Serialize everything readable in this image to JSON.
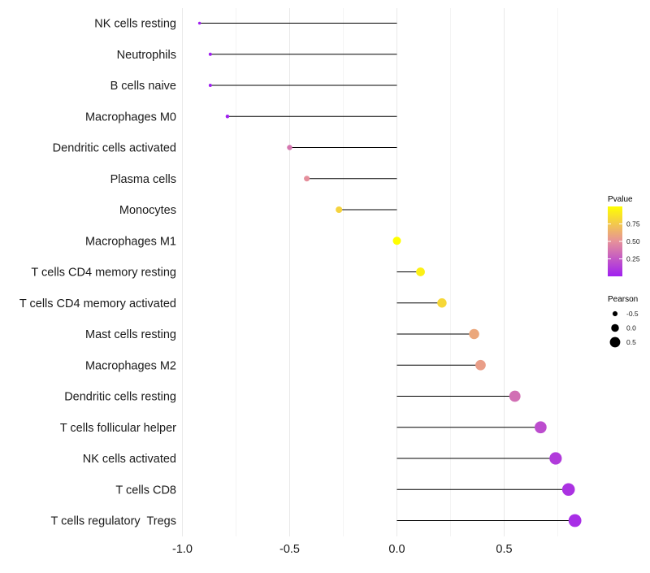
{
  "chart_data": {
    "type": "lollipop",
    "xlabel": "",
    "ylabel": "",
    "xlim": [
      -1.0,
      0.85
    ],
    "x_ticks": [
      -1.0,
      -0.5,
      0.0,
      0.5
    ],
    "x_tick_labels": [
      "-1.0",
      "-0.5",
      "0.0",
      "0.5"
    ],
    "grid": true,
    "categories": [
      "NK cells resting",
      "Neutrophils",
      "B cells naive",
      "Macrophages M0",
      "Dendritic cells activated",
      "Plasma cells",
      "Monocytes",
      "Macrophages M1",
      "T cells CD4 memory resting",
      "T cells CD4 memory activated",
      "Mast cells resting",
      "Macrophages M2",
      "Dendritic cells resting",
      "T cells follicular helper",
      "NK cells activated",
      "T cells CD8",
      "T cells regulatory  Tregs"
    ],
    "pearson": [
      -0.92,
      -0.87,
      -0.87,
      -0.79,
      -0.5,
      -0.42,
      -0.27,
      0.0,
      0.11,
      0.21,
      0.36,
      0.39,
      0.55,
      0.67,
      0.74,
      0.8,
      0.83
    ],
    "pvalue": [
      0.0,
      0.0,
      0.0,
      0.0,
      0.38,
      0.49,
      0.8,
      1.0,
      0.93,
      0.82,
      0.6,
      0.56,
      0.35,
      0.2,
      0.12,
      0.08,
      0.06
    ],
    "legend": {
      "color": {
        "title": "Pvalue",
        "ticks": [
          0.25,
          0.5,
          0.75
        ],
        "tick_labels": [
          "0.25",
          "0.50",
          "0.75"
        ],
        "range": [
          0.0,
          1.0
        ],
        "low_color": "#a020f0",
        "mid_color": "#e6919a",
        "high_color": "#ffff00"
      },
      "size": {
        "title": "Pearson",
        "values": [
          -0.5,
          0.0,
          0.5
        ],
        "labels": [
          "-0.5",
          "0.0",
          "0.5"
        ]
      },
      "placement": "right"
    }
  }
}
